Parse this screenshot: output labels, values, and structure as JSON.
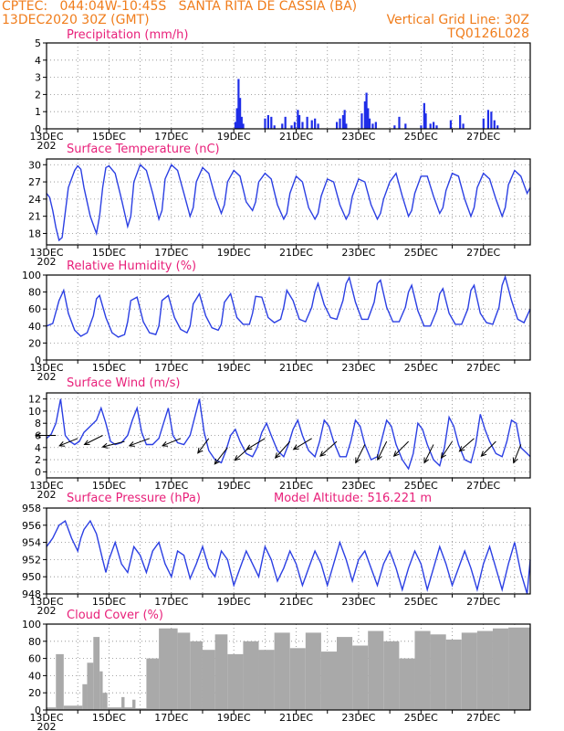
{
  "header": {
    "station_line": "CPTEC:   044:04W-10:45S   SANTA RITA DE CASSIA (BA)",
    "date_line": "13DEC2020 30Z (GMT)",
    "grid_line_text": "Vertical Grid Line: 30Z",
    "code": "TQ0126L028",
    "color": "#f07d1c"
  },
  "colors": {
    "title": "#e8207a",
    "series": "#2b3fe3",
    "bars": "#1e2de8",
    "cloud": "#a9a9a9",
    "arrows": "#000000"
  },
  "x_axis": {
    "labels": [
      "13DEC",
      "15DEC",
      "17DEC",
      "19DEC",
      "21DEC",
      "23DEC",
      "25DEC",
      "27DEC"
    ],
    "label_positions_days": [
      0,
      2,
      4,
      6,
      8,
      10,
      12,
      14
    ],
    "extra_tick_label": "202",
    "range_days": [
      0,
      15.5
    ]
  },
  "chart_data": [
    {
      "type": "bar",
      "title": "Precipitation (mm/h)",
      "ylim": [
        0,
        5
      ],
      "yticks": [
        "0",
        "1",
        "2",
        "3",
        "4",
        "5"
      ],
      "x_days": [
        6.05,
        6.1,
        6.15,
        6.2,
        6.25,
        6.3,
        7.0,
        7.1,
        7.2,
        7.3,
        7.55,
        7.65,
        7.85,
        7.95,
        8.05,
        8.1,
        8.2,
        8.35,
        8.5,
        8.6,
        8.7,
        9.3,
        9.4,
        9.5,
        9.55,
        9.6,
        10.1,
        10.2,
        10.25,
        10.3,
        10.35,
        10.45,
        10.55,
        11.15,
        11.3,
        11.5,
        12.0,
        12.1,
        12.15,
        12.3,
        12.4,
        12.5,
        12.95,
        13.25,
        13.35,
        14.0,
        14.15,
        14.25,
        14.35,
        14.45
      ],
      "values": [
        0.4,
        1.2,
        2.9,
        1.8,
        0.7,
        0.3,
        0.6,
        0.8,
        0.7,
        0.2,
        0.3,
        0.7,
        0.2,
        0.4,
        1.1,
        0.8,
        0.4,
        0.7,
        0.5,
        0.6,
        0.3,
        0.4,
        0.6,
        0.8,
        1.1,
        0.3,
        0.9,
        1.6,
        2.1,
        1.2,
        0.6,
        0.3,
        0.4,
        0.2,
        0.7,
        0.3,
        0.2,
        1.5,
        0.9,
        0.3,
        0.4,
        0.2,
        0.5,
        0.8,
        0.3,
        0.6,
        1.1,
        1.0,
        0.5,
        0.2
      ]
    },
    {
      "type": "line",
      "title": "Surface Temperature (nC)",
      "ylim": [
        16,
        31
      ],
      "yticks": [
        "18",
        "21",
        "24",
        "27",
        "30"
      ],
      "ytick_values": [
        18,
        21,
        24,
        27,
        30
      ],
      "x_days": [
        0,
        0.1,
        0.2,
        0.3,
        0.4,
        0.5,
        0.7,
        0.9,
        1.0,
        1.1,
        1.2,
        1.4,
        1.6,
        1.7,
        1.8,
        1.9,
        2.0,
        2.2,
        2.4,
        2.6,
        2.7,
        2.8,
        3.0,
        3.2,
        3.4,
        3.6,
        3.7,
        3.8,
        4.0,
        4.2,
        4.4,
        4.6,
        4.7,
        4.8,
        5.0,
        5.2,
        5.4,
        5.6,
        5.7,
        5.8,
        6.0,
        6.2,
        6.4,
        6.6,
        6.7,
        6.8,
        7.0,
        7.2,
        7.4,
        7.6,
        7.7,
        7.8,
        8.0,
        8.2,
        8.4,
        8.6,
        8.7,
        8.8,
        9.0,
        9.2,
        9.4,
        9.6,
        9.7,
        9.8,
        10.0,
        10.2,
        10.4,
        10.6,
        10.7,
        10.8,
        11.0,
        11.2,
        11.4,
        11.6,
        11.7,
        11.8,
        12.0,
        12.2,
        12.4,
        12.6,
        12.7,
        12.8,
        13.0,
        13.2,
        13.4,
        13.6,
        13.7,
        13.8,
        14.0,
        14.2,
        14.4,
        14.6,
        14.7,
        14.8,
        15.0,
        15.2,
        15.4,
        15.5
      ],
      "values": [
        25.0,
        24.3,
        22.0,
        19.0,
        16.8,
        17.3,
        26.0,
        29.0,
        29.8,
        29.2,
        26.0,
        21.0,
        18.0,
        21.0,
        26.0,
        29.5,
        29.8,
        28.5,
        24.0,
        19.2,
        21.0,
        27.0,
        30.0,
        29.0,
        25.0,
        20.5,
        22.0,
        27.5,
        30.0,
        29.0,
        25.0,
        21.0,
        22.5,
        27.0,
        29.5,
        28.5,
        24.5,
        21.5,
        23.0,
        27.0,
        29.0,
        28.0,
        23.5,
        22.0,
        23.5,
        27.0,
        28.5,
        27.5,
        23.0,
        20.5,
        21.5,
        25.0,
        28.0,
        27.0,
        22.5,
        20.5,
        21.5,
        24.5,
        27.5,
        27.0,
        23.0,
        20.5,
        21.5,
        24.5,
        27.5,
        27.0,
        23.0,
        20.5,
        21.5,
        24.0,
        27.0,
        28.5,
        24.5,
        21.0,
        22.0,
        25.0,
        28.0,
        28.0,
        24.5,
        21.5,
        22.5,
        25.5,
        28.5,
        28.0,
        24.0,
        21.0,
        22.5,
        26.0,
        28.5,
        27.5,
        24.0,
        21.0,
        22.5,
        26.5,
        29.0,
        28.0,
        25.0,
        26.0
      ]
    },
    {
      "type": "line",
      "title": "Relative Humidity (%)",
      "ylim": [
        0,
        100
      ],
      "yticks": [
        "0",
        "20",
        "40",
        "60",
        "80",
        "100"
      ],
      "ytick_values": [
        0,
        20,
        40,
        60,
        80,
        100
      ],
      "x_days": [
        0,
        0.2,
        0.4,
        0.55,
        0.7,
        0.9,
        1.1,
        1.3,
        1.5,
        1.6,
        1.7,
        1.9,
        2.1,
        2.3,
        2.5,
        2.6,
        2.7,
        2.9,
        3.1,
        3.3,
        3.5,
        3.6,
        3.7,
        3.9,
        4.1,
        4.3,
        4.5,
        4.6,
        4.7,
        4.9,
        5.1,
        5.3,
        5.5,
        5.6,
        5.7,
        5.9,
        6.1,
        6.3,
        6.5,
        6.6,
        6.7,
        6.9,
        7.1,
        7.3,
        7.5,
        7.6,
        7.7,
        7.9,
        8.1,
        8.3,
        8.5,
        8.6,
        8.7,
        8.9,
        9.1,
        9.3,
        9.5,
        9.6,
        9.7,
        9.9,
        10.1,
        10.3,
        10.5,
        10.6,
        10.7,
        10.9,
        11.1,
        11.3,
        11.5,
        11.6,
        11.7,
        11.9,
        12.1,
        12.3,
        12.5,
        12.6,
        12.7,
        12.9,
        13.1,
        13.3,
        13.5,
        13.6,
        13.7,
        13.9,
        14.1,
        14.3,
        14.5,
        14.6,
        14.7,
        14.9,
        15.1,
        15.3,
        15.5
      ],
      "values": [
        40,
        43,
        70,
        82,
        55,
        35,
        28,
        32,
        52,
        72,
        76,
        50,
        32,
        27,
        30,
        45,
        70,
        74,
        45,
        32,
        30,
        40,
        70,
        76,
        50,
        36,
        32,
        40,
        66,
        78,
        52,
        38,
        35,
        42,
        68,
        78,
        50,
        42,
        42,
        55,
        75,
        74,
        50,
        44,
        48,
        62,
        82,
        70,
        48,
        45,
        62,
        80,
        90,
        65,
        50,
        48,
        70,
        90,
        97,
        68,
        48,
        48,
        68,
        90,
        94,
        62,
        45,
        45,
        62,
        80,
        88,
        58,
        40,
        40,
        58,
        78,
        84,
        55,
        42,
        42,
        60,
        82,
        88,
        55,
        44,
        42,
        62,
        88,
        98,
        70,
        48,
        44,
        60
      ]
    },
    {
      "type": "line",
      "title": "Surface Wind (m/s)",
      "ylim": [
        -1,
        13
      ],
      "yticks": [
        "0",
        "2",
        "4",
        "6",
        "8",
        "10",
        "12"
      ],
      "ytick_values": [
        0,
        2,
        4,
        6,
        8,
        10,
        12
      ],
      "x_days": [
        0,
        0.15,
        0.3,
        0.45,
        0.6,
        0.75,
        0.9,
        1.05,
        1.2,
        1.4,
        1.6,
        1.75,
        1.9,
        2.05,
        2.2,
        2.4,
        2.6,
        2.75,
        2.9,
        3.05,
        3.2,
        3.4,
        3.6,
        3.75,
        3.9,
        4.05,
        4.2,
        4.4,
        4.6,
        4.75,
        4.9,
        5.05,
        5.2,
        5.4,
        5.6,
        5.75,
        5.9,
        6.05,
        6.2,
        6.4,
        6.6,
        6.75,
        6.9,
        7.05,
        7.2,
        7.4,
        7.6,
        7.75,
        7.9,
        8.05,
        8.2,
        8.4,
        8.6,
        8.75,
        8.9,
        9.05,
        9.2,
        9.4,
        9.6,
        9.75,
        9.9,
        10.05,
        10.2,
        10.4,
        10.6,
        10.75,
        10.9,
        11.05,
        11.2,
        11.4,
        11.6,
        11.75,
        11.9,
        12.05,
        12.2,
        12.4,
        12.6,
        12.75,
        12.9,
        13.05,
        13.2,
        13.4,
        13.6,
        13.75,
        13.9,
        14.05,
        14.2,
        14.4,
        14.6,
        14.75,
        14.9,
        15.05,
        15.2,
        15.4,
        15.5
      ],
      "values": [
        5.5,
        6.2,
        8.0,
        12.0,
        6.0,
        5.0,
        4.5,
        5.0,
        6.5,
        7.5,
        8.5,
        10.5,
        8.0,
        5.0,
        4.5,
        4.8,
        6.0,
        8.5,
        10.5,
        6.5,
        4.5,
        4.5,
        5.5,
        8.0,
        10.5,
        6.0,
        4.8,
        4.5,
        6.0,
        9.0,
        12.0,
        6.5,
        3.5,
        2.0,
        1.5,
        3.5,
        6.0,
        7.0,
        5.0,
        3.0,
        2.5,
        4.0,
        6.5,
        8.0,
        6.0,
        3.5,
        2.5,
        4.5,
        7.0,
        8.5,
        6.0,
        3.5,
        2.5,
        5.0,
        8.5,
        7.5,
        5.0,
        2.5,
        2.5,
        5.0,
        8.5,
        7.5,
        4.5,
        2.0,
        2.5,
        5.5,
        8.5,
        7.5,
        4.5,
        2.0,
        0.5,
        3.0,
        8.0,
        7.0,
        4.5,
        2.0,
        1.0,
        4.0,
        9.0,
        7.5,
        4.5,
        2.0,
        1.5,
        4.5,
        9.5,
        7.0,
        5.0,
        3.0,
        2.5,
        5.0,
        8.5,
        8.0,
        4.0,
        3.0,
        2.5
      ],
      "arrows": [
        {
          "x_day": 0.3,
          "y": 6.0,
          "u": -1.1,
          "v": 0.0
        },
        {
          "x_day": 1.0,
          "y": 5.5,
          "u": -1.0,
          "v": -0.4
        },
        {
          "x_day": 1.8,
          "y": 6.0,
          "u": -1.0,
          "v": -0.5
        },
        {
          "x_day": 2.5,
          "y": 5.0,
          "u": -1.2,
          "v": -0.3
        },
        {
          "x_day": 3.3,
          "y": 5.5,
          "u": -1.1,
          "v": -0.4
        },
        {
          "x_day": 4.3,
          "y": 5.5,
          "u": -1.0,
          "v": -0.4
        },
        {
          "x_day": 5.2,
          "y": 5.5,
          "u": -0.6,
          "v": -0.8
        },
        {
          "x_day": 5.8,
          "y": 4.0,
          "u": -0.7,
          "v": -0.9
        },
        {
          "x_day": 6.5,
          "y": 4.0,
          "u": -0.8,
          "v": -0.7
        },
        {
          "x_day": 7.0,
          "y": 5.5,
          "u": -1.0,
          "v": -0.6
        },
        {
          "x_day": 7.8,
          "y": 5.0,
          "u": -0.8,
          "v": -0.9
        },
        {
          "x_day": 8.5,
          "y": 5.5,
          "u": -1.0,
          "v": -0.6
        },
        {
          "x_day": 9.3,
          "y": 5.0,
          "u": -0.9,
          "v": -0.8
        },
        {
          "x_day": 10.2,
          "y": 4.5,
          "u": -0.5,
          "v": -1.0
        },
        {
          "x_day": 10.9,
          "y": 5.0,
          "u": -0.5,
          "v": -1.0
        },
        {
          "x_day": 11.6,
          "y": 5.0,
          "u": -0.8,
          "v": -0.8
        },
        {
          "x_day": 12.4,
          "y": 4.5,
          "u": -0.5,
          "v": -1.0
        },
        {
          "x_day": 13.0,
          "y": 5.0,
          "u": -0.6,
          "v": -0.9
        },
        {
          "x_day": 13.7,
          "y": 5.5,
          "u": -0.8,
          "v": -0.7
        },
        {
          "x_day": 14.4,
          "y": 5.0,
          "u": -0.8,
          "v": -0.8
        },
        {
          "x_day": 15.2,
          "y": 4.5,
          "u": -0.4,
          "v": -1.0
        }
      ]
    },
    {
      "type": "line",
      "title": "Surface Pressure (hPa)",
      "subtitle": "Model Altitude: 516.221 m",
      "ylim": [
        948,
        958
      ],
      "yticks": [
        "948",
        "950",
        "952",
        "954",
        "956",
        "958"
      ],
      "ytick_values": [
        948,
        950,
        952,
        954,
        956,
        958
      ],
      "x_days": [
        0,
        0.2,
        0.4,
        0.6,
        0.8,
        1.0,
        1.1,
        1.2,
        1.4,
        1.6,
        1.8,
        1.9,
        2.0,
        2.2,
        2.4,
        2.6,
        2.8,
        3.0,
        3.2,
        3.4,
        3.6,
        3.8,
        4.0,
        4.2,
        4.4,
        4.6,
        4.8,
        5.0,
        5.2,
        5.4,
        5.6,
        5.8,
        6.0,
        6.2,
        6.4,
        6.6,
        6.8,
        7.0,
        7.2,
        7.4,
        7.6,
        7.8,
        8.0,
        8.2,
        8.4,
        8.6,
        8.8,
        9.0,
        9.2,
        9.4,
        9.6,
        9.8,
        10.0,
        10.2,
        10.4,
        10.6,
        10.8,
        11.0,
        11.2,
        11.4,
        11.6,
        11.8,
        12.0,
        12.2,
        12.4,
        12.6,
        12.8,
        13.0,
        13.2,
        13.4,
        13.6,
        13.8,
        14.0,
        14.2,
        14.4,
        14.6,
        14.8,
        15.0,
        15.2,
        15.4,
        15.5
      ],
      "values": [
        953.5,
        954.5,
        956.0,
        956.5,
        954.5,
        953.0,
        954.5,
        955.5,
        956.5,
        955.0,
        952.0,
        950.5,
        952.0,
        954.0,
        951.5,
        950.5,
        953.5,
        952.5,
        950.5,
        953.0,
        954.0,
        951.5,
        950.0,
        953.0,
        952.5,
        949.8,
        951.5,
        953.5,
        951.0,
        950.0,
        953.0,
        952.0,
        949.0,
        951.0,
        953.0,
        951.5,
        950.0,
        953.5,
        952.0,
        949.5,
        951.0,
        953.0,
        951.5,
        949.0,
        951.0,
        953.0,
        951.5,
        949.0,
        951.5,
        954.0,
        952.0,
        949.5,
        952.0,
        953.0,
        951.0,
        949.0,
        951.5,
        953.0,
        951.0,
        948.5,
        951.0,
        953.0,
        951.5,
        948.5,
        951.0,
        953.5,
        951.5,
        949.0,
        951.0,
        953.0,
        951.0,
        948.5,
        951.5,
        953.5,
        951.0,
        948.5,
        951.5,
        954.0,
        950.5,
        948.0,
        952.0
      ]
    },
    {
      "type": "bar",
      "title": "Cloud Cover (%)",
      "ylim": [
        0,
        100
      ],
      "yticks": [
        "0",
        "20",
        "40",
        "60",
        "80",
        "100"
      ],
      "segments_days": [
        {
          "start": 0.0,
          "end": 0.3,
          "value": 3
        },
        {
          "start": 0.3,
          "end": 0.55,
          "value": 65
        },
        {
          "start": 0.55,
          "end": 1.15,
          "value": 5
        },
        {
          "start": 1.15,
          "end": 1.3,
          "value": 30
        },
        {
          "start": 1.3,
          "end": 1.5,
          "value": 55
        },
        {
          "start": 1.5,
          "end": 1.7,
          "value": 85
        },
        {
          "start": 1.7,
          "end": 1.8,
          "value": 45
        },
        {
          "start": 1.8,
          "end": 1.95,
          "value": 20
        },
        {
          "start": 1.95,
          "end": 2.4,
          "value": 3
        },
        {
          "start": 2.4,
          "end": 2.5,
          "value": 15
        },
        {
          "start": 2.5,
          "end": 2.75,
          "value": 3
        },
        {
          "start": 2.75,
          "end": 2.85,
          "value": 12
        },
        {
          "start": 2.85,
          "end": 3.2,
          "value": 2
        },
        {
          "start": 3.2,
          "end": 3.6,
          "value": 60
        },
        {
          "start": 3.6,
          "end": 4.2,
          "value": 95
        },
        {
          "start": 4.2,
          "end": 4.6,
          "value": 90
        },
        {
          "start": 4.6,
          "end": 5.0,
          "value": 80
        },
        {
          "start": 5.0,
          "end": 5.4,
          "value": 70
        },
        {
          "start": 5.4,
          "end": 5.8,
          "value": 88
        },
        {
          "start": 5.8,
          "end": 6.3,
          "value": 65
        },
        {
          "start": 6.3,
          "end": 6.8,
          "value": 80
        },
        {
          "start": 6.8,
          "end": 7.3,
          "value": 70
        },
        {
          "start": 7.3,
          "end": 7.8,
          "value": 90
        },
        {
          "start": 7.8,
          "end": 8.3,
          "value": 72
        },
        {
          "start": 8.3,
          "end": 8.8,
          "value": 90
        },
        {
          "start": 8.8,
          "end": 9.3,
          "value": 68
        },
        {
          "start": 9.3,
          "end": 9.8,
          "value": 85
        },
        {
          "start": 9.8,
          "end": 10.3,
          "value": 75
        },
        {
          "start": 10.3,
          "end": 10.8,
          "value": 92
        },
        {
          "start": 10.8,
          "end": 11.3,
          "value": 80
        },
        {
          "start": 11.3,
          "end": 11.8,
          "value": 60
        },
        {
          "start": 11.8,
          "end": 12.3,
          "value": 92
        },
        {
          "start": 12.3,
          "end": 12.8,
          "value": 88
        },
        {
          "start": 12.8,
          "end": 13.3,
          "value": 82
        },
        {
          "start": 13.3,
          "end": 13.8,
          "value": 90
        },
        {
          "start": 13.8,
          "end": 14.3,
          "value": 92
        },
        {
          "start": 14.3,
          "end": 14.8,
          "value": 95
        },
        {
          "start": 14.8,
          "end": 15.5,
          "value": 96
        }
      ]
    }
  ]
}
